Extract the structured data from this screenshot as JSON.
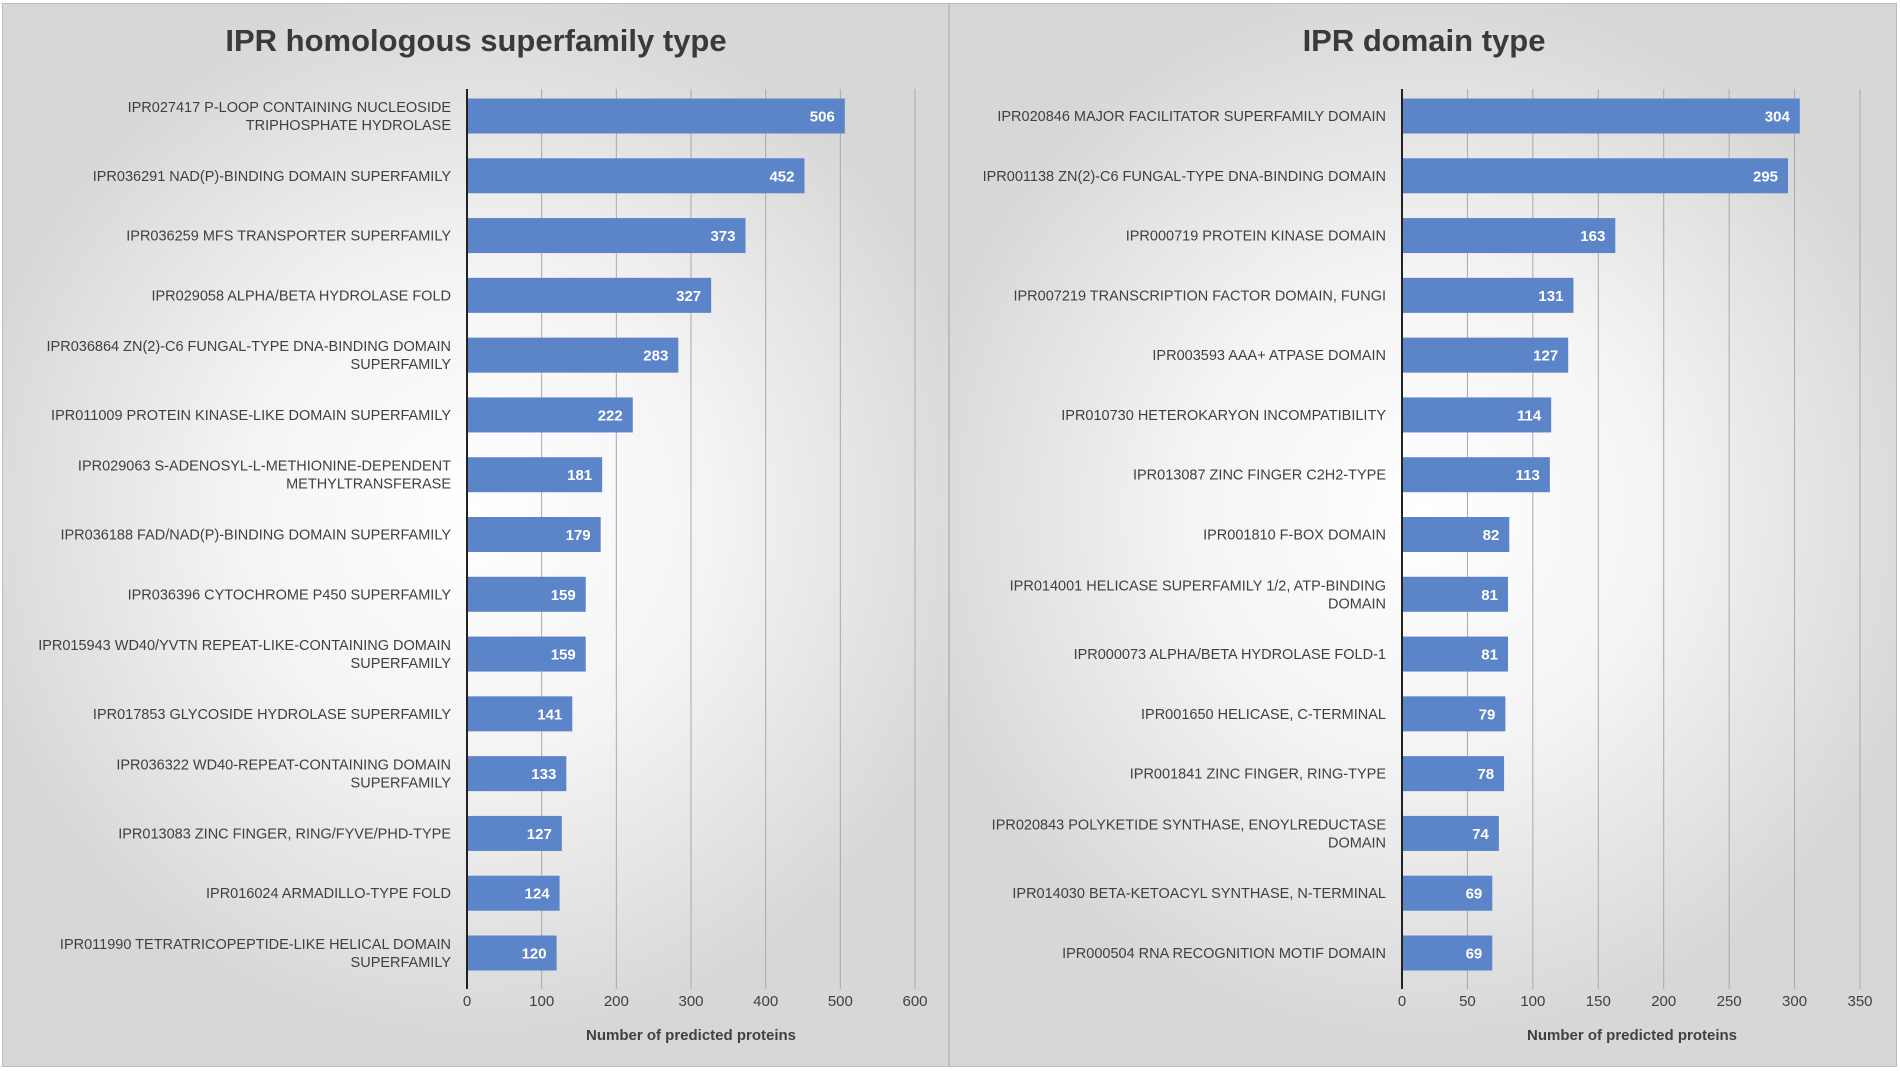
{
  "chart_data": [
    {
      "type": "bar",
      "orientation": "horizontal",
      "title": "IPR homologous superfamily type",
      "xlabel": "Number of predicted proteins",
      "ylabel": "",
      "xlim": [
        0,
        600
      ],
      "xticks": [
        0,
        100,
        200,
        300,
        400,
        500,
        600
      ],
      "grid": true,
      "color": "#5b84c9",
      "categories": [
        "IPR027417 P-LOOP CONTAINING NUCLEOSIDE TRIPHOSPHATE HYDROLASE",
        "IPR036291 NAD(P)-BINDING DOMAIN SUPERFAMILY",
        "IPR036259 MFS TRANSPORTER SUPERFAMILY",
        "IPR029058 ALPHA/BETA HYDROLASE FOLD",
        "IPR036864 ZN(2)-C6 FUNGAL-TYPE DNA-BINDING DOMAIN SUPERFAMILY",
        "IPR011009 PROTEIN KINASE-LIKE DOMAIN SUPERFAMILY",
        "IPR029063 S-ADENOSYL-L-METHIONINE-DEPENDENT METHYLTRANSFERASE",
        "IPR036188 FAD/NAD(P)-BINDING DOMAIN SUPERFAMILY",
        "IPR036396 CYTOCHROME P450 SUPERFAMILY",
        "IPR015943 WD40/YVTN REPEAT-LIKE-CONTAINING DOMAIN SUPERFAMILY",
        "IPR017853 GLYCOSIDE HYDROLASE SUPERFAMILY",
        "IPR036322 WD40-REPEAT-CONTAINING DOMAIN SUPERFAMILY",
        "IPR013083 ZINC FINGER, RING/FYVE/PHD-TYPE",
        "IPR016024 ARMADILLO-TYPE FOLD",
        "IPR011990 TETRATRICOPEPTIDE-LIKE HELICAL DOMAIN SUPERFAMILY"
      ],
      "category_lines": [
        [
          "IPR027417 P-LOOP CONTAINING NUCLEOSIDE",
          "TRIPHOSPHATE HYDROLASE"
        ],
        [
          "IPR036291 NAD(P)-BINDING DOMAIN SUPERFAMILY"
        ],
        [
          "IPR036259 MFS TRANSPORTER SUPERFAMILY"
        ],
        [
          "IPR029058 ALPHA/BETA HYDROLASE FOLD"
        ],
        [
          "IPR036864 ZN(2)-C6 FUNGAL-TYPE DNA-BINDING DOMAIN",
          "SUPERFAMILY"
        ],
        [
          "IPR011009 PROTEIN KINASE-LIKE DOMAIN SUPERFAMILY"
        ],
        [
          "IPR029063 S-ADENOSYL-L-METHIONINE-DEPENDENT",
          "METHYLTRANSFERASE"
        ],
        [
          "IPR036188 FAD/NAD(P)-BINDING DOMAIN SUPERFAMILY"
        ],
        [
          "IPR036396 CYTOCHROME P450 SUPERFAMILY"
        ],
        [
          "IPR015943 WD40/YVTN REPEAT-LIKE-CONTAINING DOMAIN",
          "SUPERFAMILY"
        ],
        [
          "IPR017853 GLYCOSIDE HYDROLASE SUPERFAMILY"
        ],
        [
          "IPR036322 WD40-REPEAT-CONTAINING DOMAIN",
          "SUPERFAMILY"
        ],
        [
          "IPR013083 ZINC FINGER, RING/FYVE/PHD-TYPE"
        ],
        [
          "IPR016024 ARMADILLO-TYPE FOLD"
        ],
        [
          "IPR011990 TETRATRICOPEPTIDE-LIKE HELICAL DOMAIN",
          "SUPERFAMILY"
        ]
      ],
      "values": [
        506,
        452,
        373,
        327,
        283,
        222,
        181,
        179,
        159,
        159,
        141,
        133,
        127,
        124,
        120
      ]
    },
    {
      "type": "bar",
      "orientation": "horizontal",
      "title": "IPR domain type",
      "xlabel": "Number of predicted proteins",
      "ylabel": "",
      "xlim": [
        0,
        350
      ],
      "xticks": [
        0,
        50,
        100,
        150,
        200,
        250,
        300,
        350
      ],
      "grid": true,
      "color": "#5b84c9",
      "categories": [
        "IPR020846 MAJOR FACILITATOR SUPERFAMILY DOMAIN",
        "IPR001138 ZN(2)-C6 FUNGAL-TYPE DNA-BINDING DOMAIN",
        "IPR000719 PROTEIN KINASE DOMAIN",
        "IPR007219 TRANSCRIPTION FACTOR DOMAIN, FUNGI",
        "IPR003593 AAA+ ATPASE DOMAIN",
        "IPR010730 HETEROKARYON INCOMPATIBILITY",
        "IPR013087 ZINC FINGER C2H2-TYPE",
        "IPR001810 F-BOX DOMAIN",
        "IPR014001 HELICASE SUPERFAMILY 1/2, ATP-BINDING DOMAIN",
        "IPR000073 ALPHA/BETA HYDROLASE FOLD-1",
        "IPR001650 HELICASE, C-TERMINAL",
        "IPR001841 ZINC FINGER, RING-TYPE",
        "IPR020843 POLYKETIDE SYNTHASE, ENOYLREDUCTASE DOMAIN",
        "IPR014030 BETA-KETOACYL SYNTHASE, N-TERMINAL",
        "IPR000504 RNA RECOGNITION MOTIF DOMAIN"
      ],
      "category_lines": [
        [
          "IPR020846 MAJOR FACILITATOR SUPERFAMILY DOMAIN"
        ],
        [
          "IPR001138 ZN(2)-C6 FUNGAL-TYPE DNA-BINDING DOMAIN"
        ],
        [
          "IPR000719 PROTEIN KINASE DOMAIN"
        ],
        [
          "IPR007219 TRANSCRIPTION FACTOR DOMAIN, FUNGI"
        ],
        [
          "IPR003593 AAA+ ATPASE DOMAIN"
        ],
        [
          "IPR010730 HETEROKARYON INCOMPATIBILITY"
        ],
        [
          "IPR013087 ZINC FINGER C2H2-TYPE"
        ],
        [
          "IPR001810 F-BOX DOMAIN"
        ],
        [
          "IPR014001 HELICASE SUPERFAMILY 1/2, ATP-BINDING",
          "DOMAIN"
        ],
        [
          "IPR000073 ALPHA/BETA HYDROLASE FOLD-1"
        ],
        [
          "IPR001650 HELICASE, C-TERMINAL"
        ],
        [
          "IPR001841 ZINC FINGER, RING-TYPE"
        ],
        [
          "IPR020843 POLYKETIDE SYNTHASE, ENOYLREDUCTASE",
          "DOMAIN"
        ],
        [
          "IPR014030 BETA-KETOACYL SYNTHASE, N-TERMINAL"
        ],
        [
          "IPR000504 RNA RECOGNITION MOTIF DOMAIN"
        ]
      ],
      "values": [
        304,
        295,
        163,
        131,
        127,
        114,
        113,
        82,
        81,
        81,
        79,
        78,
        74,
        69,
        69
      ]
    }
  ]
}
